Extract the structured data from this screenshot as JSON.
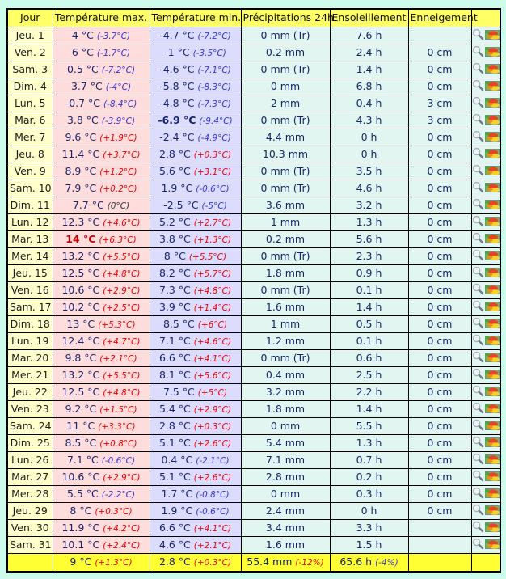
{
  "colors": {
    "page_bg": "#cdfbec",
    "header_bg": "#ffff66",
    "day_bg": "#ffffcc",
    "tmax_bg": "#ffdddd",
    "tmin_bg": "#dcdcff",
    "data_bg": "#e1f6f0",
    "summary_bg": "#ffff33",
    "border": "#000000",
    "value": "#16246b",
    "day_text": "#1b1b1b",
    "header_text": "#101010",
    "anom_red": "#ee0000",
    "anom_blue": "#3535ce",
    "anom_dark": "#333333",
    "record_red": "#c40000"
  },
  "icons": {
    "magnifier": "magnifier-icon",
    "map_thumbnail": "map-thumbnail-icon"
  },
  "table": {
    "headers": [
      {
        "key": "jour",
        "label": "Jour"
      },
      {
        "key": "temperature-max",
        "label": "Température max."
      },
      {
        "key": "temperature-min",
        "label": "Température min."
      },
      {
        "key": "precipitations-24h",
        "label": "Précipitations 24h"
      },
      {
        "key": "ensoleillement",
        "label": "Ensoleillement"
      },
      {
        "key": "enneigement",
        "label": "Enneigement"
      },
      {
        "key": "actions",
        "label": ""
      }
    ],
    "rows": [
      {
        "day": "Jeu. 1",
        "tmax": "4 °C",
        "tmax_anom": "(-3.7°C)",
        "tmax_ac": "blue",
        "tmin": "-4.7 °C",
        "tmin_anom": "(-7.2°C)",
        "tmin_ac": "blue",
        "precip": "0 mm (Tr)",
        "sun": "7.6 h",
        "snow": ""
      },
      {
        "day": "Ven. 2",
        "tmax": "6 °C",
        "tmax_anom": "(-1.7°C)",
        "tmax_ac": "blue",
        "tmin": "-1 °C",
        "tmin_anom": "(-3.5°C)",
        "tmin_ac": "blue",
        "precip": "0.2 mm",
        "sun": "2.4 h",
        "snow": "0 cm"
      },
      {
        "day": "Sam. 3",
        "tmax": "0.5 °C",
        "tmax_anom": "(-7.2°C)",
        "tmax_ac": "blue",
        "tmin": "-4.6 °C",
        "tmin_anom": "(-7.1°C)",
        "tmin_ac": "blue",
        "precip": "0 mm (Tr)",
        "sun": "1.4 h",
        "snow": "0 cm"
      },
      {
        "day": "Dim. 4",
        "tmax": "3.7 °C",
        "tmax_anom": "(-4°C)",
        "tmax_ac": "blue",
        "tmin": "-5.8 °C",
        "tmin_anom": "(-8.3°C)",
        "tmin_ac": "blue",
        "precip": "0 mm",
        "sun": "6.8 h",
        "snow": "0 cm"
      },
      {
        "day": "Lun. 5",
        "tmax": "-0.7 °C",
        "tmax_anom": "(-8.4°C)",
        "tmax_ac": "blue",
        "tmin": "-4.8 °C",
        "tmin_anom": "(-7.3°C)",
        "tmin_ac": "blue",
        "precip": "2 mm",
        "sun": "0.4 h",
        "snow": "3 cm"
      },
      {
        "day": "Mar. 6",
        "tmax": "3.8 °C",
        "tmax_anom": "(-3.9°C)",
        "tmax_ac": "blue",
        "tmin": "-6.9 °C",
        "tmin_anom": "(-9.4°C)",
        "tmin_ac": "blue",
        "tmin_bold": true,
        "precip": "0 mm (Tr)",
        "sun": "4.3 h",
        "snow": "3 cm"
      },
      {
        "day": "Mer. 7",
        "tmax": "9.6 °C",
        "tmax_anom": "(+1.9°C)",
        "tmax_ac": "red",
        "tmin": "-2.4 °C",
        "tmin_anom": "(-4.9°C)",
        "tmin_ac": "blue",
        "precip": "4.4 mm",
        "sun": "0 h",
        "snow": "0 cm"
      },
      {
        "day": "Jeu. 8",
        "tmax": "11.4 °C",
        "tmax_anom": "(+3.7°C)",
        "tmax_ac": "red",
        "tmin": "2.8 °C",
        "tmin_anom": "(+0.3°C)",
        "tmin_ac": "red",
        "precip": "10.3 mm",
        "sun": "0 h",
        "snow": "0 cm"
      },
      {
        "day": "Ven. 9",
        "tmax": "8.9 °C",
        "tmax_anom": "(+1.2°C)",
        "tmax_ac": "red",
        "tmin": "5.6 °C",
        "tmin_anom": "(+3.1°C)",
        "tmin_ac": "red",
        "precip": "0 mm (Tr)",
        "sun": "3.5 h",
        "snow": "0 cm"
      },
      {
        "day": "Sam. 10",
        "tmax": "7.9 °C",
        "tmax_anom": "(+0.2°C)",
        "tmax_ac": "red",
        "tmin": "1.9 °C",
        "tmin_anom": "(-0.6°C)",
        "tmin_ac": "blue",
        "precip": "0 mm (Tr)",
        "sun": "4.6 h",
        "snow": "0 cm"
      },
      {
        "day": "Dim. 11",
        "tmax": "7.7 °C",
        "tmax_anom": "(0°C)",
        "tmax_ac": "dark",
        "tmin": "-2.5 °C",
        "tmin_anom": "(-5°C)",
        "tmin_ac": "blue",
        "precip": "3.6 mm",
        "sun": "3.2 h",
        "snow": "0 cm"
      },
      {
        "day": "Lun. 12",
        "tmax": "12.3 °C",
        "tmax_anom": "(+4.6°C)",
        "tmax_ac": "red",
        "tmin": "5.2 °C",
        "tmin_anom": "(+2.7°C)",
        "tmin_ac": "red",
        "precip": "1 mm",
        "sun": "1.3 h",
        "snow": "0 cm"
      },
      {
        "day": "Mar. 13",
        "tmax": "14 °C",
        "tmax_anom": "(+6.3°C)",
        "tmax_ac": "red",
        "tmax_record": true,
        "tmin": "3.8 °C",
        "tmin_anom": "(+1.3°C)",
        "tmin_ac": "red",
        "precip": "0.2 mm",
        "sun": "5.6 h",
        "snow": "0 cm"
      },
      {
        "day": "Mer. 14",
        "tmax": "13.2 °C",
        "tmax_anom": "(+5.5°C)",
        "tmax_ac": "red",
        "tmin": "8 °C",
        "tmin_anom": "(+5.5°C)",
        "tmin_ac": "red",
        "precip": "0 mm (Tr)",
        "sun": "2.3 h",
        "snow": "0 cm"
      },
      {
        "day": "Jeu. 15",
        "tmax": "12.5 °C",
        "tmax_anom": "(+4.8°C)",
        "tmax_ac": "red",
        "tmin": "8.2 °C",
        "tmin_anom": "(+5.7°C)",
        "tmin_ac": "red",
        "precip": "1.8 mm",
        "sun": "0.9 h",
        "snow": "0 cm"
      },
      {
        "day": "Ven. 16",
        "tmax": "10.6 °C",
        "tmax_anom": "(+2.9°C)",
        "tmax_ac": "red",
        "tmin": "7.3 °C",
        "tmin_anom": "(+4.8°C)",
        "tmin_ac": "red",
        "precip": "0 mm (Tr)",
        "sun": "0.1 h",
        "snow": "0 cm"
      },
      {
        "day": "Sam. 17",
        "tmax": "10.2 °C",
        "tmax_anom": "(+2.5°C)",
        "tmax_ac": "red",
        "tmin": "3.9 °C",
        "tmin_anom": "(+1.4°C)",
        "tmin_ac": "red",
        "precip": "1.6 mm",
        "sun": "1.4 h",
        "snow": "0 cm"
      },
      {
        "day": "Dim. 18",
        "tmax": "13 °C",
        "tmax_anom": "(+5.3°C)",
        "tmax_ac": "red",
        "tmin": "8.5 °C",
        "tmin_anom": "(+6°C)",
        "tmin_ac": "red",
        "precip": "1 mm",
        "sun": "0.5 h",
        "snow": "0 cm"
      },
      {
        "day": "Lun. 19",
        "tmax": "12.4 °C",
        "tmax_anom": "(+4.7°C)",
        "tmax_ac": "red",
        "tmin": "7.1 °C",
        "tmin_anom": "(+4.6°C)",
        "tmin_ac": "red",
        "precip": "1.2 mm",
        "sun": "0.1 h",
        "snow": "0 cm"
      },
      {
        "day": "Mar. 20",
        "tmax": "9.8 °C",
        "tmax_anom": "(+2.1°C)",
        "tmax_ac": "red",
        "tmin": "6.6 °C",
        "tmin_anom": "(+4.1°C)",
        "tmin_ac": "red",
        "precip": "0 mm (Tr)",
        "sun": "0.6 h",
        "snow": "0 cm"
      },
      {
        "day": "Mer. 21",
        "tmax": "13.2 °C",
        "tmax_anom": "(+5.5°C)",
        "tmax_ac": "red",
        "tmin": "8.1 °C",
        "tmin_anom": "(+5.6°C)",
        "tmin_ac": "red",
        "precip": "0.4 mm",
        "sun": "2.5 h",
        "snow": "0 cm"
      },
      {
        "day": "Jeu. 22",
        "tmax": "12.5 °C",
        "tmax_anom": "(+4.8°C)",
        "tmax_ac": "red",
        "tmin": "7.5 °C",
        "tmin_anom": "(+5°C)",
        "tmin_ac": "red",
        "precip": "3.2 mm",
        "sun": "2.2 h",
        "snow": "0 cm"
      },
      {
        "day": "Ven. 23",
        "tmax": "9.2 °C",
        "tmax_anom": "(+1.5°C)",
        "tmax_ac": "red",
        "tmin": "5.4 °C",
        "tmin_anom": "(+2.9°C)",
        "tmin_ac": "red",
        "precip": "1.8 mm",
        "sun": "1.4 h",
        "snow": "0 cm"
      },
      {
        "day": "Sam. 24",
        "tmax": "11 °C",
        "tmax_anom": "(+3.3°C)",
        "tmax_ac": "red",
        "tmin": "2.8 °C",
        "tmin_anom": "(+0.3°C)",
        "tmin_ac": "red",
        "precip": "0 mm",
        "sun": "5.5 h",
        "snow": "0 cm"
      },
      {
        "day": "Dim. 25",
        "tmax": "8.5 °C",
        "tmax_anom": "(+0.8°C)",
        "tmax_ac": "red",
        "tmin": "5.1 °C",
        "tmin_anom": "(+2.6°C)",
        "tmin_ac": "red",
        "precip": "5.4 mm",
        "sun": "1.3 h",
        "snow": "0 cm"
      },
      {
        "day": "Lun. 26",
        "tmax": "7.1 °C",
        "tmax_anom": "(-0.6°C)",
        "tmax_ac": "blue",
        "tmin": "0.4 °C",
        "tmin_anom": "(-2.1°C)",
        "tmin_ac": "blue",
        "precip": "7.1 mm",
        "sun": "0.7 h",
        "snow": "0 cm"
      },
      {
        "day": "Mar. 27",
        "tmax": "10.6 °C",
        "tmax_anom": "(+2.9°C)",
        "tmax_ac": "red",
        "tmin": "5.1 °C",
        "tmin_anom": "(+2.6°C)",
        "tmin_ac": "red",
        "precip": "2.8 mm",
        "sun": "0.2 h",
        "snow": "0 cm"
      },
      {
        "day": "Mer. 28",
        "tmax": "5.5 °C",
        "tmax_anom": "(-2.2°C)",
        "tmax_ac": "blue",
        "tmin": "1.7 °C",
        "tmin_anom": "(-0.8°C)",
        "tmin_ac": "blue",
        "precip": "0 mm",
        "sun": "0.3 h",
        "snow": "0 cm"
      },
      {
        "day": "Jeu. 29",
        "tmax": "8 °C",
        "tmax_anom": "(+0.3°C)",
        "tmax_ac": "red",
        "tmin": "1.9 °C",
        "tmin_anom": "(-0.6°C)",
        "tmin_ac": "blue",
        "precip": "2.4 mm",
        "sun": "0 h",
        "snow": "0 cm"
      },
      {
        "day": "Ven. 30",
        "tmax": "11.9 °C",
        "tmax_anom": "(+4.2°C)",
        "tmax_ac": "red",
        "tmin": "6.6 °C",
        "tmin_anom": "(+4.1°C)",
        "tmin_ac": "red",
        "precip": "3.4 mm",
        "sun": "3.3 h",
        "snow": ""
      },
      {
        "day": "Sam. 31",
        "tmax": "10.1 °C",
        "tmax_anom": "(+2.4°C)",
        "tmax_ac": "red",
        "tmin": "4.6 °C",
        "tmin_anom": "(+2.1°C)",
        "tmin_ac": "red",
        "precip": "1.6 mm",
        "sun": "1.5 h",
        "snow": ""
      }
    ],
    "summary": {
      "day": "",
      "tmax": "9 °C",
      "tmax_anom": "(+1.3°C)",
      "tmax_ac": "red",
      "tmin": "2.8 °C",
      "tmin_anom": "(+0.3°C)",
      "tmin_ac": "red",
      "precip": "55.4 mm",
      "precip_anom": "(-12%)",
      "precip_ac": "red",
      "sun": "65.6 h",
      "sun_anom": "(-4%)",
      "sun_ac": "blue",
      "snow": "",
      "actions": ""
    }
  }
}
